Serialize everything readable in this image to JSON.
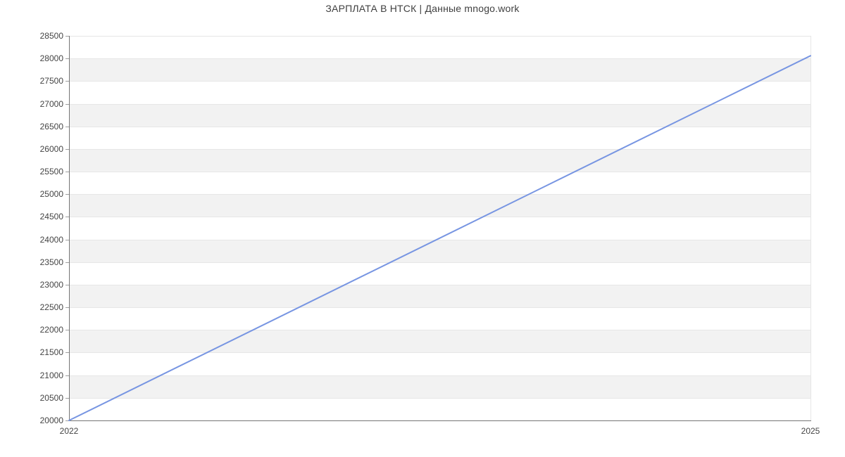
{
  "title": "ЗАРПЛАТА В НТСК | Данные mnogo.work",
  "colors": {
    "background": "#ffffff",
    "title": "#404040",
    "axis_line": "#757575",
    "tick_mark": "#9e9e9e",
    "tick_label": "#444444",
    "gridline": "#e6e6e6",
    "band_fill": "#f2f2f2",
    "line": "#7795e2"
  },
  "chart_data": {
    "type": "line",
    "title": "ЗАРПЛАТА В НТСК | Данные mnogo.work",
    "xlabel": "",
    "ylabel": "",
    "x": [
      2022,
      2025
    ],
    "series": [
      {
        "name": "ЗАРПЛАТА В НТСК",
        "values": [
          20000,
          28060
        ]
      }
    ],
    "xlim": [
      2022,
      2025
    ],
    "ylim": [
      20000,
      28500
    ],
    "ytick_step": 500,
    "yticks": [
      20000,
      20500,
      21000,
      21500,
      22000,
      22500,
      23000,
      23500,
      24000,
      24500,
      25000,
      25500,
      26000,
      26500,
      27000,
      27500,
      28000,
      28500
    ],
    "xticks": [
      2022,
      2025
    ],
    "grid": true,
    "alternating_bands": true,
    "legend_position": "none",
    "line_width": 2
  }
}
